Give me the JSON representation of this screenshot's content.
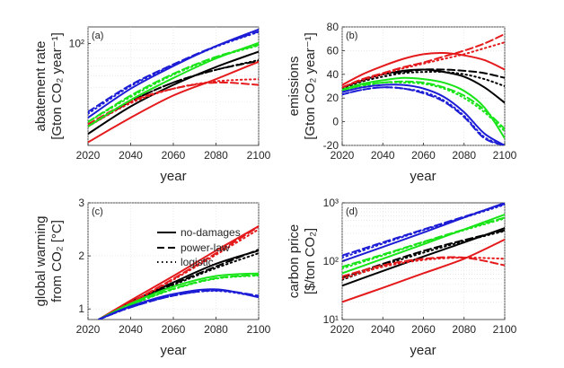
{
  "figure": {
    "title": ""
  },
  "styles": {
    "no-damages": "",
    "power-law": "8,4",
    "logistic": "1.5,3.5"
  },
  "colors": {
    "black": "#000000",
    "red": "#e41a1c",
    "green": "#18e418",
    "blue": "#1d1dd6"
  },
  "chart_data": [
    {
      "type": "line",
      "panel": "a",
      "panel_label": "(a)",
      "ylabel_lines": [
        "abatement rate",
        "[Gton CO₂ year⁻¹]"
      ],
      "xlabel": "year",
      "xlim": [
        2020,
        2100
      ],
      "yscale": "log",
      "ylim": [
        20,
        130
      ],
      "xticks": [
        2020,
        2040,
        2060,
        2080,
        2100
      ],
      "yticks": [
        100
      ],
      "ytick_labels": [
        "10²"
      ],
      "x": [
        2020,
        2040,
        2060,
        2080,
        2100
      ],
      "series": [
        {
          "name": "black no-damages",
          "color": "black",
          "style": "no-damages",
          "values": [
            24,
            37,
            52,
            69,
            88
          ]
        },
        {
          "name": "black power-law",
          "color": "black",
          "style": "power-law",
          "values": [
            27,
            40,
            54,
            66,
            76
          ]
        },
        {
          "name": "black logistic",
          "color": "black",
          "style": "logistic",
          "values": [
            27,
            40,
            54,
            66,
            77
          ]
        },
        {
          "name": "red no-damages",
          "color": "red",
          "style": "no-damages",
          "values": [
            21,
            31,
            44,
            57,
            75
          ]
        },
        {
          "name": "red power-law",
          "color": "red",
          "style": "power-law",
          "values": [
            28,
            40,
            49,
            54,
            52
          ]
        },
        {
          "name": "red logistic",
          "color": "red",
          "style": "logistic",
          "values": [
            27,
            39,
            49,
            55,
            57
          ]
        },
        {
          "name": "green no-damages",
          "color": "green",
          "style": "no-damages",
          "values": [
            27,
            41,
            58,
            79,
            101
          ]
        },
        {
          "name": "green power-law",
          "color": "green",
          "style": "power-law",
          "values": [
            29,
            44,
            62,
            81,
            98
          ]
        },
        {
          "name": "green logistic",
          "color": "green",
          "style": "logistic",
          "values": [
            29,
            43,
            61,
            80,
            97
          ]
        },
        {
          "name": "blue no-damages",
          "color": "blue",
          "style": "no-damages",
          "values": [
            31,
            49,
            70,
            96,
            125
          ]
        },
        {
          "name": "blue power-law",
          "color": "blue",
          "style": "power-law",
          "values": [
            34,
            52,
            72,
            96,
            121
          ]
        },
        {
          "name": "blue logistic",
          "color": "blue",
          "style": "logistic",
          "values": [
            33,
            51,
            71,
            95,
            120
          ]
        }
      ]
    },
    {
      "type": "line",
      "panel": "b",
      "panel_label": "(b)",
      "ylabel_lines": [
        "emissions",
        "[Gton CO₂ year⁻¹]"
      ],
      "xlabel": "year",
      "xlim": [
        2020,
        2100
      ],
      "yscale": "linear",
      "ylim": [
        -20,
        80
      ],
      "xticks": [
        2020,
        2040,
        2060,
        2080,
        2100
      ],
      "yticks": [
        -20,
        0,
        20,
        40,
        60,
        80
      ],
      "x": [
        2020,
        2030,
        2040,
        2050,
        2060,
        2070,
        2080,
        2090,
        2100
      ],
      "series": [
        {
          "name": "black no-damages",
          "color": "black",
          "style": "no-damages",
          "values": [
            29,
            35,
            40,
            43,
            44,
            42,
            38,
            29,
            16
          ]
        },
        {
          "name": "black power-law",
          "color": "black",
          "style": "power-law",
          "values": [
            29,
            35,
            40,
            42,
            44,
            44,
            43,
            41,
            37
          ]
        },
        {
          "name": "black logistic",
          "color": "black",
          "style": "logistic",
          "values": [
            28,
            34,
            38,
            41,
            42,
            42,
            40,
            36,
            30
          ]
        },
        {
          "name": "red no-damages",
          "color": "red",
          "style": "no-damages",
          "values": [
            31,
            40,
            47,
            53,
            57,
            58,
            56,
            52,
            44
          ]
        },
        {
          "name": "red power-law",
          "color": "red",
          "style": "power-law",
          "values": [
            29,
            36,
            41,
            46,
            50,
            55,
            60,
            66,
            74
          ]
        },
        {
          "name": "red logistic",
          "color": "red",
          "style": "logistic",
          "values": [
            29,
            35,
            40,
            45,
            49,
            53,
            57,
            62,
            67
          ]
        },
        {
          "name": "green no-damages",
          "color": "green",
          "style": "no-damages",
          "values": [
            27,
            32,
            35,
            37,
            36,
            33,
            26,
            12,
            -14
          ]
        },
        {
          "name": "green power-law",
          "color": "green",
          "style": "power-law",
          "values": [
            26,
            31,
            33,
            34,
            33,
            29,
            22,
            10,
            -6
          ]
        },
        {
          "name": "green logistic",
          "color": "green",
          "style": "logistic",
          "values": [
            26,
            30,
            33,
            33,
            32,
            28,
            20,
            8,
            -8
          ]
        },
        {
          "name": "blue no-damages",
          "color": "blue",
          "style": "no-damages",
          "values": [
            25,
            29,
            31,
            31,
            28,
            21,
            8,
            -10,
            -20
          ]
        },
        {
          "name": "blue power-law",
          "color": "blue",
          "style": "power-law",
          "values": [
            23,
            27,
            29,
            28,
            24,
            17,
            4,
            -14,
            -20
          ]
        },
        {
          "name": "blue logistic",
          "color": "blue",
          "style": "logistic",
          "values": [
            23,
            27,
            29,
            28,
            25,
            18,
            5,
            -13,
            -20
          ]
        }
      ]
    },
    {
      "type": "line",
      "panel": "c",
      "panel_label": "(c)",
      "ylabel_lines": [
        "global warming",
        "from CO₂ [°C]"
      ],
      "xlabel": "year",
      "xlim": [
        2020,
        2100
      ],
      "yscale": "linear",
      "ylim": [
        0.8,
        3.0
      ],
      "xticks": [
        2020,
        2040,
        2060,
        2080,
        2100
      ],
      "yticks": [
        1,
        2,
        3
      ],
      "legend": {
        "position": "top-right",
        "entries": [
          {
            "label": "no-damages",
            "style": "no-damages"
          },
          {
            "label": "power-law",
            "style": "power-law"
          },
          {
            "label": "logistic",
            "style": "logistic"
          }
        ]
      },
      "x": [
        2025,
        2040,
        2060,
        2080,
        2100
      ],
      "series": [
        {
          "name": "black no-damages",
          "color": "black",
          "style": "no-damages",
          "values": [
            0.8,
            1.13,
            1.5,
            1.85,
            2.1
          ]
        },
        {
          "name": "black power-law",
          "color": "black",
          "style": "power-law",
          "values": [
            0.8,
            1.12,
            1.47,
            1.8,
            2.12
          ]
        },
        {
          "name": "black logistic",
          "color": "black",
          "style": "logistic",
          "values": [
            0.8,
            1.11,
            1.45,
            1.77,
            2.05
          ]
        },
        {
          "name": "red no-damages",
          "color": "red",
          "style": "no-damages",
          "values": [
            0.8,
            1.16,
            1.62,
            2.1,
            2.56
          ]
        },
        {
          "name": "red power-law",
          "color": "red",
          "style": "power-law",
          "values": [
            0.8,
            1.12,
            1.57,
            2.05,
            2.55
          ]
        },
        {
          "name": "red logistic",
          "color": "red",
          "style": "logistic",
          "values": [
            0.8,
            1.11,
            1.55,
            2.02,
            2.5
          ]
        },
        {
          "name": "green no-damages",
          "color": "green",
          "style": "no-damages",
          "values": [
            0.8,
            1.1,
            1.42,
            1.62,
            1.67
          ]
        },
        {
          "name": "green power-law",
          "color": "green",
          "style": "power-law",
          "values": [
            0.8,
            1.08,
            1.38,
            1.58,
            1.64
          ]
        },
        {
          "name": "green logistic",
          "color": "green",
          "style": "logistic",
          "values": [
            0.8,
            1.07,
            1.37,
            1.57,
            1.63
          ]
        },
        {
          "name": "blue no-damages",
          "color": "blue",
          "style": "no-damages",
          "values": [
            0.8,
            1.05,
            1.28,
            1.37,
            1.22
          ]
        },
        {
          "name": "blue power-law",
          "color": "blue",
          "style": "power-law",
          "values": [
            0.8,
            1.03,
            1.25,
            1.35,
            1.25
          ]
        },
        {
          "name": "blue logistic",
          "color": "blue",
          "style": "logistic",
          "values": [
            0.8,
            1.03,
            1.25,
            1.34,
            1.23
          ]
        }
      ]
    },
    {
      "type": "line",
      "panel": "d",
      "panel_label": "(d)",
      "ylabel_lines": [
        "carbon price",
        "[$/ton CO₂]"
      ],
      "xlabel": "year",
      "xlim": [
        2020,
        2100
      ],
      "yscale": "log",
      "ylim": [
        10,
        1000
      ],
      "xticks": [
        2020,
        2040,
        2060,
        2080,
        2100
      ],
      "yticks": [
        10,
        100,
        1000
      ],
      "ytick_labels": [
        "10¹",
        "10²",
        "10³"
      ],
      "x": [
        2020,
        2040,
        2060,
        2080,
        2100
      ],
      "series": [
        {
          "name": "black no-damages",
          "color": "black",
          "style": "no-damages",
          "values": [
            38,
            68,
            120,
            210,
            370
          ]
        },
        {
          "name": "black power-law",
          "color": "black",
          "style": "power-law",
          "values": [
            52,
            90,
            150,
            230,
            340
          ]
        },
        {
          "name": "black logistic",
          "color": "black",
          "style": "logistic",
          "values": [
            48,
            85,
            140,
            220,
            330
          ]
        },
        {
          "name": "red no-damages",
          "color": "red",
          "style": "no-damages",
          "values": [
            20,
            35,
            62,
            110,
            235
          ]
        },
        {
          "name": "red power-law",
          "color": "red",
          "style": "power-law",
          "values": [
            55,
            85,
            110,
            115,
            85
          ]
        },
        {
          "name": "red logistic",
          "color": "red",
          "style": "logistic",
          "values": [
            50,
            80,
            105,
            115,
            110
          ]
        },
        {
          "name": "green no-damages",
          "color": "green",
          "style": "no-damages",
          "values": [
            62,
            110,
            195,
            350,
            630
          ]
        },
        {
          "name": "green power-law",
          "color": "green",
          "style": "power-law",
          "values": [
            80,
            130,
            215,
            350,
            560
          ]
        },
        {
          "name": "green logistic",
          "color": "green",
          "style": "logistic",
          "values": [
            75,
            125,
            210,
            340,
            540
          ]
        },
        {
          "name": "blue no-damages",
          "color": "blue",
          "style": "no-damages",
          "values": [
            100,
            175,
            310,
            560,
            1000
          ]
        },
        {
          "name": "blue power-law",
          "color": "blue",
          "style": "power-law",
          "values": [
            125,
            210,
            350,
            580,
            960
          ]
        },
        {
          "name": "blue logistic",
          "color": "blue",
          "style": "logistic",
          "values": [
            115,
            200,
            340,
            560,
            930
          ]
        }
      ]
    }
  ]
}
